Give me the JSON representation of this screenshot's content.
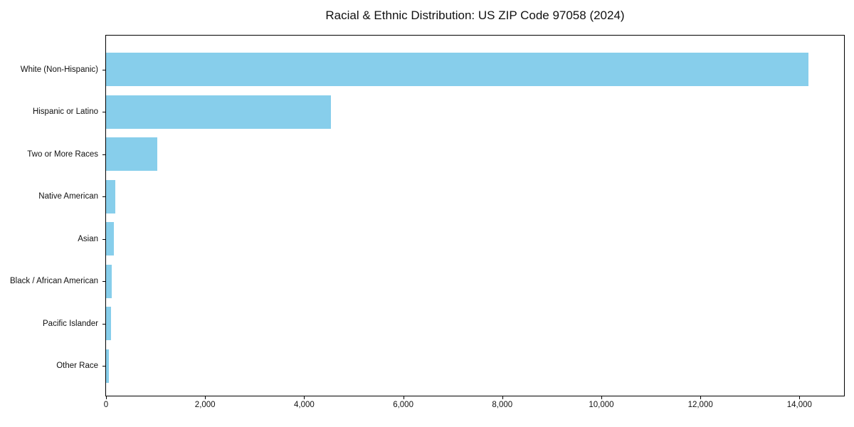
{
  "chart_data": {
    "type": "bar",
    "orientation": "horizontal",
    "title": "Racial & Ethnic Distribution: US ZIP Code 97058 (2024)",
    "categories": [
      "White (Non-Hispanic)",
      "Hispanic or Latino",
      "Two or More Races",
      "Native American",
      "Asian",
      "Black / African American",
      "Pacific Islander",
      "Other Race"
    ],
    "values": [
      14180,
      4540,
      1040,
      190,
      155,
      115,
      105,
      55
    ],
    "xlabel": "",
    "ylabel": "",
    "xlim": [
      0,
      14900
    ],
    "xticks": [
      0,
      2000,
      4000,
      6000,
      8000,
      10000,
      12000,
      14000
    ],
    "xtick_labels": [
      "0",
      "2,000",
      "4,000",
      "6,000",
      "8,000",
      "10,000",
      "12,000",
      "14,000"
    ],
    "bar_color": "#87CEEB",
    "axis_color": "#000000",
    "grid": false,
    "legend": null
  }
}
